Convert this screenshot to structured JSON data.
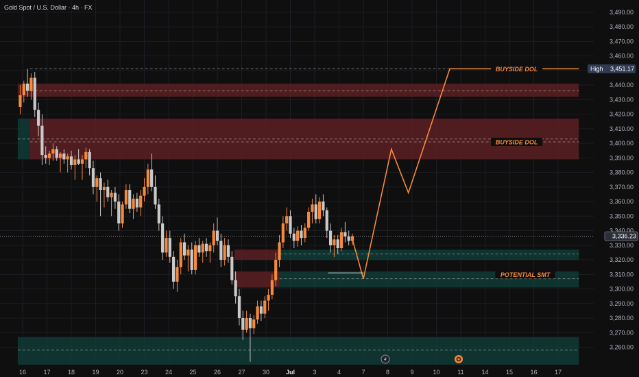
{
  "header": {
    "title": "Gold Spot / U.S. Dollar · 4h · FX"
  },
  "colors": {
    "background": "#0f0f10",
    "up": "#f58a3c",
    "down": "#c9c9c9",
    "bearish_zone": "#5a1e22",
    "bullish_zone": "#0f3b36",
    "projection": "#f58a3c",
    "annotation_text": "#f58a3c",
    "axis_text": "#b2b5be",
    "price_badge": "#2f3b52"
  },
  "chart_data": {
    "type": "candlestick",
    "title": "Gold Spot / U.S. Dollar · 4h · FX",
    "ylim": [
      3248,
      3497
    ],
    "y_ticks": [
      "3,260.00",
      "3,270.00",
      "3,280.00",
      "3,290.00",
      "3,300.00",
      "3,310.00",
      "3,320.00",
      "3,330.00",
      "3,340.00",
      "3,350.00",
      "3,360.00",
      "3,370.00",
      "3,380.00",
      "3,390.00",
      "3,400.00",
      "3,410.00",
      "3,420.00",
      "3,430.00",
      "3,440.00",
      "3,450.00",
      "3,460.00",
      "3,470.00",
      "3,480.00",
      "3,490.00"
    ],
    "x_ticks": [
      {
        "label": "16",
        "x": 0
      },
      {
        "label": "17",
        "x": 1
      },
      {
        "label": "18",
        "x": 2
      },
      {
        "label": "19",
        "x": 3
      },
      {
        "label": "20",
        "x": 4
      },
      {
        "label": "23",
        "x": 5
      },
      {
        "label": "24",
        "x": 6
      },
      {
        "label": "25",
        "x": 7
      },
      {
        "label": "26",
        "x": 8
      },
      {
        "label": "27",
        "x": 9
      },
      {
        "label": "30",
        "x": 10
      },
      {
        "label": "Jul",
        "x": 11
      },
      {
        "label": "3",
        "x": 12
      },
      {
        "label": "4",
        "x": 13
      },
      {
        "label": "7",
        "x": 14
      },
      {
        "label": "8",
        "x": 15
      },
      {
        "label": "9",
        "x": 16
      },
      {
        "label": "10",
        "x": 17
      },
      {
        "label": "11",
        "x": 18
      },
      {
        "label": "14",
        "x": 19
      },
      {
        "label": "15",
        "x": 20
      },
      {
        "label": "16",
        "x": 21
      },
      {
        "label": "17",
        "x": 22
      }
    ],
    "x_range": [
      -0.2,
      23.1
    ],
    "last_price": {
      "label": "3,336.23",
      "value": 3336.23
    },
    "high": {
      "label": "High",
      "value_label": "3,451.17",
      "value": 3451.17
    },
    "candles": [
      {
        "x": -0.1,
        "o": 3425,
        "h": 3440,
        "l": 3420,
        "c": 3433
      },
      {
        "x": 0.05,
        "o": 3433,
        "h": 3443,
        "l": 3428,
        "c": 3441
      },
      {
        "x": 0.2,
        "o": 3441,
        "h": 3451.17,
        "l": 3432,
        "c": 3436
      },
      {
        "x": 0.35,
        "o": 3436,
        "h": 3448,
        "l": 3430,
        "c": 3445
      },
      {
        "x": 0.5,
        "o": 3445,
        "h": 3449,
        "l": 3418,
        "c": 3423
      },
      {
        "x": 0.65,
        "o": 3423,
        "h": 3428,
        "l": 3405,
        "c": 3412
      },
      {
        "x": 0.8,
        "o": 3412,
        "h": 3420,
        "l": 3385,
        "c": 3392
      },
      {
        "x": 0.95,
        "o": 3392,
        "h": 3398,
        "l": 3386,
        "c": 3390
      },
      {
        "x": 1.1,
        "o": 3390,
        "h": 3395,
        "l": 3385,
        "c": 3393
      },
      {
        "x": 1.25,
        "o": 3393,
        "h": 3400,
        "l": 3388,
        "c": 3396
      },
      {
        "x": 1.4,
        "o": 3396,
        "h": 3398,
        "l": 3388,
        "c": 3390
      },
      {
        "x": 1.55,
        "o": 3390,
        "h": 3394,
        "l": 3380,
        "c": 3393
      },
      {
        "x": 1.7,
        "o": 3393,
        "h": 3396,
        "l": 3386,
        "c": 3389
      },
      {
        "x": 1.85,
        "o": 3389,
        "h": 3393,
        "l": 3380,
        "c": 3391
      },
      {
        "x": 2.0,
        "o": 3391,
        "h": 3395,
        "l": 3382,
        "c": 3385
      },
      {
        "x": 2.15,
        "o": 3385,
        "h": 3392,
        "l": 3375,
        "c": 3389
      },
      {
        "x": 2.3,
        "o": 3389,
        "h": 3396,
        "l": 3385,
        "c": 3386
      },
      {
        "x": 2.45,
        "o": 3386,
        "h": 3392,
        "l": 3375,
        "c": 3389
      },
      {
        "x": 2.6,
        "o": 3389,
        "h": 3397,
        "l": 3383,
        "c": 3394
      },
      {
        "x": 2.75,
        "o": 3394,
        "h": 3396,
        "l": 3378,
        "c": 3383
      },
      {
        "x": 2.9,
        "o": 3383,
        "h": 3388,
        "l": 3365,
        "c": 3370
      },
      {
        "x": 3.05,
        "o": 3370,
        "h": 3378,
        "l": 3360,
        "c": 3376
      },
      {
        "x": 3.2,
        "o": 3376,
        "h": 3380,
        "l": 3350,
        "c": 3368
      },
      {
        "x": 3.35,
        "o": 3368,
        "h": 3373,
        "l": 3356,
        "c": 3370
      },
      {
        "x": 3.5,
        "o": 3370,
        "h": 3375,
        "l": 3360,
        "c": 3363
      },
      {
        "x": 3.65,
        "o": 3363,
        "h": 3368,
        "l": 3350,
        "c": 3366
      },
      {
        "x": 3.8,
        "o": 3366,
        "h": 3370,
        "l": 3355,
        "c": 3360
      },
      {
        "x": 3.95,
        "o": 3360,
        "h": 3365,
        "l": 3340,
        "c": 3345
      },
      {
        "x": 4.1,
        "o": 3345,
        "h": 3360,
        "l": 3342,
        "c": 3358
      },
      {
        "x": 4.25,
        "o": 3358,
        "h": 3372,
        "l": 3355,
        "c": 3368
      },
      {
        "x": 4.4,
        "o": 3368,
        "h": 3372,
        "l": 3352,
        "c": 3355
      },
      {
        "x": 4.55,
        "o": 3355,
        "h": 3365,
        "l": 3348,
        "c": 3362
      },
      {
        "x": 4.7,
        "o": 3362,
        "h": 3366,
        "l": 3353,
        "c": 3356
      },
      {
        "x": 4.85,
        "o": 3356,
        "h": 3368,
        "l": 3350,
        "c": 3364
      },
      {
        "x": 5.0,
        "o": 3364,
        "h": 3376,
        "l": 3360,
        "c": 3370
      },
      {
        "x": 5.15,
        "o": 3370,
        "h": 3386,
        "l": 3365,
        "c": 3382
      },
      {
        "x": 5.3,
        "o": 3382,
        "h": 3393,
        "l": 3367,
        "c": 3370
      },
      {
        "x": 5.45,
        "o": 3370,
        "h": 3378,
        "l": 3355,
        "c": 3358
      },
      {
        "x": 5.6,
        "o": 3358,
        "h": 3362,
        "l": 3340,
        "c": 3345
      },
      {
        "x": 5.75,
        "o": 3345,
        "h": 3350,
        "l": 3320,
        "c": 3325
      },
      {
        "x": 5.9,
        "o": 3325,
        "h": 3340,
        "l": 3322,
        "c": 3335
      },
      {
        "x": 6.05,
        "o": 3335,
        "h": 3340,
        "l": 3318,
        "c": 3322
      },
      {
        "x": 6.2,
        "o": 3322,
        "h": 3326,
        "l": 3300,
        "c": 3305
      },
      {
        "x": 6.35,
        "o": 3305,
        "h": 3320,
        "l": 3298,
        "c": 3315
      },
      {
        "x": 6.5,
        "o": 3315,
        "h": 3335,
        "l": 3310,
        "c": 3332
      },
      {
        "x": 6.65,
        "o": 3332,
        "h": 3338,
        "l": 3320,
        "c": 3323
      },
      {
        "x": 6.8,
        "o": 3323,
        "h": 3330,
        "l": 3312,
        "c": 3327
      },
      {
        "x": 6.95,
        "o": 3327,
        "h": 3332,
        "l": 3310,
        "c": 3313
      },
      {
        "x": 7.1,
        "o": 3313,
        "h": 3333,
        "l": 3310,
        "c": 3330
      },
      {
        "x": 7.25,
        "o": 3330,
        "h": 3335,
        "l": 3322,
        "c": 3325
      },
      {
        "x": 7.4,
        "o": 3325,
        "h": 3333,
        "l": 3318,
        "c": 3331
      },
      {
        "x": 7.55,
        "o": 3331,
        "h": 3335,
        "l": 3322,
        "c": 3326
      },
      {
        "x": 7.7,
        "o": 3326,
        "h": 3332,
        "l": 3318,
        "c": 3330
      },
      {
        "x": 7.85,
        "o": 3330,
        "h": 3345,
        "l": 3325,
        "c": 3340
      },
      {
        "x": 8.0,
        "o": 3340,
        "h": 3349,
        "l": 3330,
        "c": 3333
      },
      {
        "x": 8.15,
        "o": 3333,
        "h": 3338,
        "l": 3315,
        "c": 3320
      },
      {
        "x": 8.3,
        "o": 3320,
        "h": 3335,
        "l": 3316,
        "c": 3330
      },
      {
        "x": 8.45,
        "o": 3330,
        "h": 3334,
        "l": 3318,
        "c": 3322
      },
      {
        "x": 8.6,
        "o": 3322,
        "h": 3326,
        "l": 3303,
        "c": 3306
      },
      {
        "x": 8.75,
        "o": 3306,
        "h": 3312,
        "l": 3290,
        "c": 3295
      },
      {
        "x": 8.9,
        "o": 3295,
        "h": 3300,
        "l": 3275,
        "c": 3280
      },
      {
        "x": 9.05,
        "o": 3280,
        "h": 3285,
        "l": 3265,
        "c": 3272
      },
      {
        "x": 9.2,
        "o": 3272,
        "h": 3285,
        "l": 3270,
        "c": 3280
      },
      {
        "x": 9.35,
        "o": 3280,
        "h": 3283,
        "l": 3250,
        "c": 3273
      },
      {
        "x": 9.5,
        "o": 3273,
        "h": 3282,
        "l": 3269,
        "c": 3279
      },
      {
        "x": 9.65,
        "o": 3279,
        "h": 3292,
        "l": 3276,
        "c": 3288
      },
      {
        "x": 9.8,
        "o": 3288,
        "h": 3292,
        "l": 3278,
        "c": 3283
      },
      {
        "x": 9.95,
        "o": 3283,
        "h": 3295,
        "l": 3280,
        "c": 3292
      },
      {
        "x": 10.1,
        "o": 3292,
        "h": 3300,
        "l": 3285,
        "c": 3296
      },
      {
        "x": 10.25,
        "o": 3296,
        "h": 3310,
        "l": 3293,
        "c": 3306
      },
      {
        "x": 10.4,
        "o": 3306,
        "h": 3325,
        "l": 3302,
        "c": 3320
      },
      {
        "x": 10.55,
        "o": 3320,
        "h": 3337,
        "l": 3315,
        "c": 3332
      },
      {
        "x": 10.7,
        "o": 3332,
        "h": 3350,
        "l": 3328,
        "c": 3345
      },
      {
        "x": 10.85,
        "o": 3345,
        "h": 3356,
        "l": 3340,
        "c": 3350
      },
      {
        "x": 11.0,
        "o": 3350,
        "h": 3354,
        "l": 3335,
        "c": 3338
      },
      {
        "x": 11.15,
        "o": 3338,
        "h": 3342,
        "l": 3328,
        "c": 3333
      },
      {
        "x": 11.3,
        "o": 3333,
        "h": 3343,
        "l": 3329,
        "c": 3340
      },
      {
        "x": 11.45,
        "o": 3340,
        "h": 3344,
        "l": 3330,
        "c": 3335
      },
      {
        "x": 11.6,
        "o": 3335,
        "h": 3345,
        "l": 3332,
        "c": 3342
      },
      {
        "x": 11.75,
        "o": 3342,
        "h": 3356,
        "l": 3340,
        "c": 3353
      },
      {
        "x": 11.9,
        "o": 3353,
        "h": 3362,
        "l": 3345,
        "c": 3358
      },
      {
        "x": 12.05,
        "o": 3358,
        "h": 3365,
        "l": 3345,
        "c": 3348
      },
      {
        "x": 12.2,
        "o": 3348,
        "h": 3363,
        "l": 3345,
        "c": 3360
      },
      {
        "x": 12.35,
        "o": 3360,
        "h": 3365,
        "l": 3350,
        "c": 3354
      },
      {
        "x": 12.5,
        "o": 3354,
        "h": 3356,
        "l": 3335,
        "c": 3340
      },
      {
        "x": 12.65,
        "o": 3340,
        "h": 3345,
        "l": 3325,
        "c": 3330
      },
      {
        "x": 12.8,
        "o": 3330,
        "h": 3337,
        "l": 3322,
        "c": 3334
      },
      {
        "x": 12.95,
        "o": 3334,
        "h": 3337,
        "l": 3324,
        "c": 3328
      },
      {
        "x": 13.1,
        "o": 3328,
        "h": 3342,
        "l": 3326,
        "c": 3339
      },
      {
        "x": 13.25,
        "o": 3339,
        "h": 3346,
        "l": 3332,
        "c": 3336
      },
      {
        "x": 13.4,
        "o": 3336,
        "h": 3340,
        "l": 3330,
        "c": 3333
      },
      {
        "x": 13.55,
        "o": 3333,
        "h": 3338,
        "l": 3330,
        "c": 3336.23
      }
    ],
    "zones": [
      {
        "kind": "bearish",
        "x0": -0.2,
        "x1": 22.85,
        "y0": 3432,
        "y1": 3441
      },
      {
        "kind": "bearish",
        "x0": 0.3,
        "x1": 22.85,
        "y0": 3389,
        "y1": 3417
      },
      {
        "kind": "bullish",
        "x0": -0.2,
        "x1": 0.3,
        "y0": 3389,
        "y1": 3417
      },
      {
        "kind": "bearish",
        "x0": 8.7,
        "x1": 10.55,
        "y0": 3320,
        "y1": 3327
      },
      {
        "kind": "bearish",
        "x0": 8.7,
        "x1": 10.55,
        "y0": 3301,
        "y1": 3312
      },
      {
        "kind": "bullish",
        "x0": 10.55,
        "x1": 22.85,
        "y0": 3320,
        "y1": 3327
      },
      {
        "kind": "bullish",
        "x0": 10.55,
        "x1": 22.85,
        "y0": 3301,
        "y1": 3312
      },
      {
        "kind": "bullish",
        "x0": -0.2,
        "x1": 22.85,
        "y0": 3248,
        "y1": 3267
      }
    ],
    "levels": [
      {
        "y": 3451.17,
        "x0": 0.3,
        "x1": 22.85
      },
      {
        "y": 3436,
        "x0": 0.3,
        "x1": 22.85
      },
      {
        "y": 3403,
        "x0": -0.2,
        "x1": 22.85
      },
      {
        "y": 3401,
        "x0": 0.3,
        "x1": 22.85
      },
      {
        "y": 3324,
        "x0": 10.55,
        "x1": 22.85
      },
      {
        "y": 3307,
        "x0": 10.55,
        "x1": 22.85
      },
      {
        "y": 3258,
        "x0": -0.2,
        "x1": 22.85
      }
    ],
    "projection_path": [
      {
        "x": 13.55,
        "y": 3334
      },
      {
        "x": 14.0,
        "y": 3307
      },
      {
        "x": 15.15,
        "y": 3396
      },
      {
        "x": 15.85,
        "y": 3366
      },
      {
        "x": 17.55,
        "y": 3451.17
      },
      {
        "x": 22.85,
        "y": 3451.17
      }
    ],
    "smt_line": {
      "x0": 12.55,
      "x1": 14.0,
      "y": 3311
    },
    "annotations": [
      {
        "text": "BUYSIDE DOL",
        "x": 20.3,
        "y": 3451.17
      },
      {
        "text": "BUYSIDE DOL",
        "x": 20.3,
        "y": 3401
      },
      {
        "text": "POTENTIAL SMT",
        "x": 20.65,
        "y": 3310
      }
    ]
  }
}
